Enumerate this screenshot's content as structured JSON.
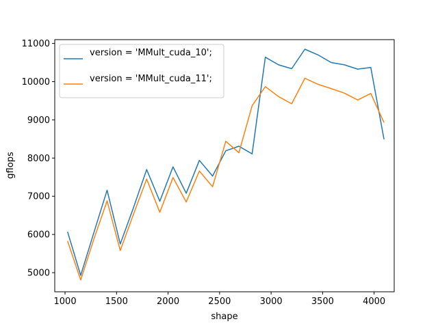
{
  "chart_data": {
    "type": "line",
    "title": "",
    "xlabel": "shape",
    "ylabel": "gflops",
    "xlim": [
      900,
      4195
    ],
    "ylim": [
      4500,
      11100
    ],
    "xticks": [
      1000,
      1500,
      2000,
      2500,
      3000,
      3500,
      4000
    ],
    "xtick_labels": [
      "1000",
      "1500",
      "2000",
      "2500",
      "3000",
      "3500",
      "4000"
    ],
    "yticks": [
      5000,
      6000,
      7000,
      8000,
      9000,
      10000,
      11000
    ],
    "ytick_labels": [
      "5000",
      "6000",
      "7000",
      "8000",
      "9000",
      "10000",
      "11000"
    ],
    "grid": false,
    "legend_position": "top-left",
    "x": [
      1024,
      1152,
      1280,
      1408,
      1536,
      1664,
      1792,
      1920,
      2048,
      2176,
      2304,
      2432,
      2560,
      2688,
      2816,
      2944,
      3072,
      3200,
      3328,
      3456,
      3584,
      3712,
      3840,
      3968,
      4096
    ],
    "series": [
      {
        "name": "version = 'MMult_cuda_10';",
        "color": "#1f77b4",
        "values": [
          6070,
          4930,
          6050,
          7160,
          5750,
          6700,
          7700,
          6870,
          7770,
          7080,
          7940,
          7530,
          8190,
          8310,
          8110,
          10640,
          10440,
          10340,
          10850,
          10700,
          10500,
          10440,
          10330,
          10370,
          8490
        ]
      },
      {
        "name": "version = 'MMult_cuda_11';",
        "color": "#ff7f0e",
        "values": [
          5830,
          4810,
          5880,
          6880,
          5580,
          6530,
          7450,
          6580,
          7490,
          6850,
          7660,
          7250,
          8440,
          8140,
          9370,
          9870,
          9610,
          9420,
          10090,
          9930,
          9820,
          9700,
          9520,
          9690,
          8930
        ]
      }
    ]
  }
}
